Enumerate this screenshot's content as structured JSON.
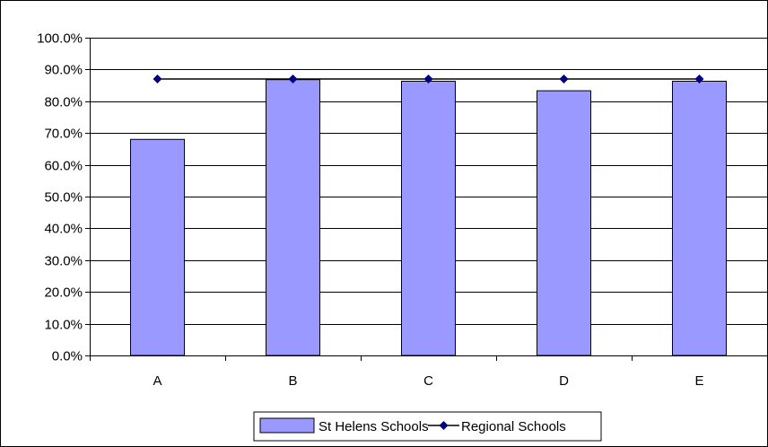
{
  "chart_data": {
    "type": "bar",
    "categories": [
      "A",
      "B",
      "C",
      "D",
      "E"
    ],
    "series": [
      {
        "name": "St Helens Schools",
        "kind": "bar",
        "color": "#9999FF",
        "values": [
          68.0,
          86.8,
          86.3,
          83.3,
          86.3
        ]
      },
      {
        "name": "Regional Schools",
        "kind": "line",
        "color": "#000080",
        "values": [
          87.0,
          87.0,
          87.0,
          87.0,
          87.0
        ]
      }
    ],
    "ylim": [
      0,
      100
    ],
    "ytick_step": 10,
    "ytick_labels": [
      "0.0%",
      "10.0%",
      "20.0%",
      "30.0%",
      "40.0%",
      "50.0%",
      "60.0%",
      "70.0%",
      "80.0%",
      "90.0%",
      "100.0%"
    ],
    "grid": true,
    "legend": {
      "position": "bottom",
      "entries": [
        "St Helens Schools",
        "Regional Schools"
      ]
    }
  }
}
